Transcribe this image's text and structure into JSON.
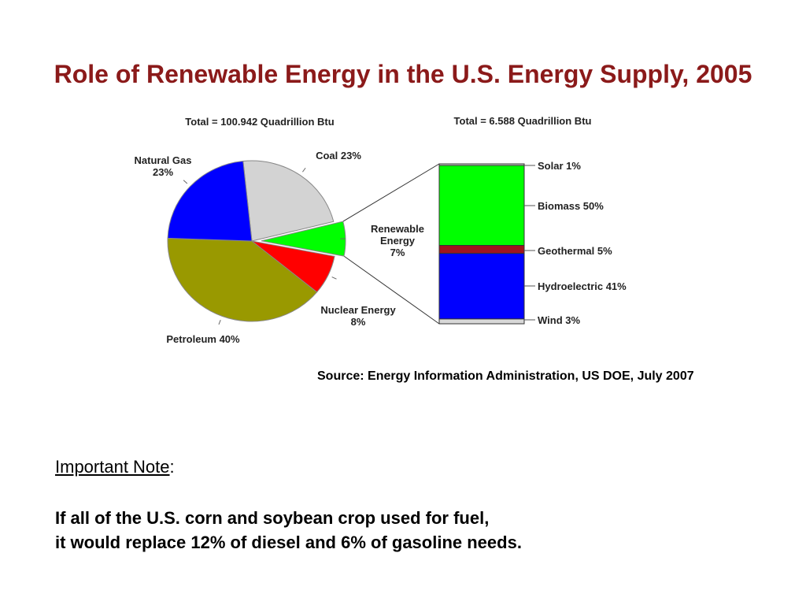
{
  "slide": {
    "title": "Role of Renewable Energy in the U.S. Energy Supply, 2005",
    "source": "Source: Energy Information Administration, US DOE, July 2007",
    "note_heading": "Important Note",
    "note_colon": ":",
    "note_lines": [
      "If all of the U.S. corn and soybean crop used for fuel,",
      "it would replace 12% of diesel and 6% of gasoline needs."
    ]
  },
  "chart_data": [
    {
      "type": "pie",
      "title": "Total = 100.942 Quadrillion Btu",
      "slices": [
        {
          "label": "Coal",
          "value_label": "23%",
          "value": 23,
          "color": "#d3d3d3"
        },
        {
          "label": "Renewable Energy",
          "value_label": "7%",
          "value": 7,
          "color": "#00ff00"
        },
        {
          "label": "Nuclear Energy",
          "value_label": "8%",
          "value": 8,
          "color": "#ff0000"
        },
        {
          "label": "Petroleum",
          "value_label": "40%",
          "value": 40,
          "color": "#999900"
        },
        {
          "label": "Natural Gas",
          "value_label": "23%",
          "value": 23,
          "color": "#0000ff"
        }
      ],
      "exploded_slice": "Renewable Energy"
    },
    {
      "type": "bar",
      "subtype": "stacked-100",
      "title": "Total = 6.588 Quadrillion Btu",
      "segments": [
        {
          "label": "Solar",
          "value_label": "1%",
          "value": 1,
          "color": "#d8d8d8"
        },
        {
          "label": "Biomass",
          "value_label": "50%",
          "value": 50,
          "color": "#00ff00"
        },
        {
          "label": "Geothermal",
          "value_label": "5%",
          "value": 5,
          "color": "#a0141e"
        },
        {
          "label": "Hydroelectric",
          "value_label": "41%",
          "value": 41,
          "color": "#0000ff"
        },
        {
          "label": "Wind",
          "value_label": "3%",
          "value": 3,
          "color": "#d8d8d8"
        }
      ]
    }
  ]
}
